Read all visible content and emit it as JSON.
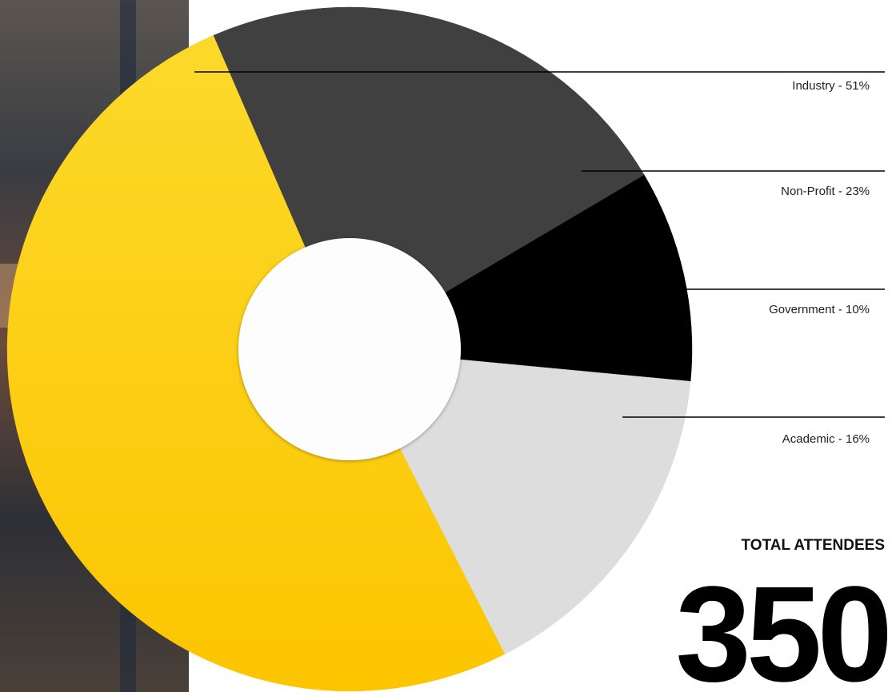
{
  "chart_data": {
    "type": "donut",
    "categories": [
      "Industry - 51%",
      "Non-Profit - 23%",
      "Government - 10%",
      "Academic - 16%"
    ],
    "values": [
      51,
      23,
      10,
      16
    ],
    "colors": [
      "#fcc80f",
      "#404040",
      "#000000",
      "#dddddd"
    ],
    "total_label": "TOTAL ATTENDEES",
    "total_value": 350
  }
}
